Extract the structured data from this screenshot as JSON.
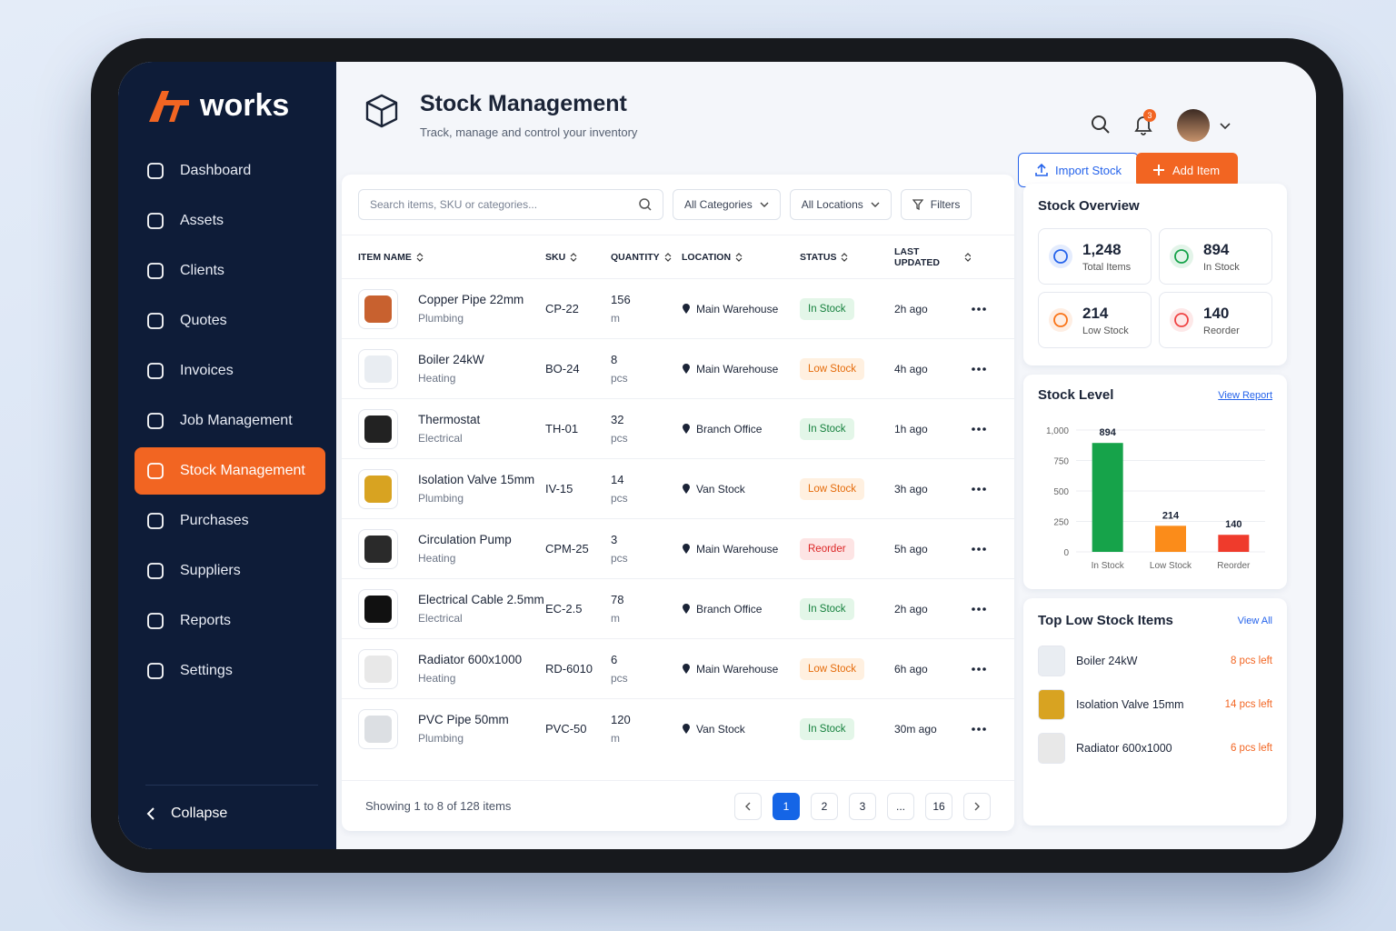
{
  "sidebar": {
    "brand": "works",
    "nav": [
      "Dashboard",
      "Assets",
      "Clients",
      "Quotes",
      "Invoices",
      "Job Management",
      "Stock Management",
      "Purchases",
      "Suppliers",
      "Reports",
      "Settings"
    ],
    "active": 6,
    "collapse": "Collapse"
  },
  "header": {
    "title": "Stock Management",
    "subtitle": "Track, manage and control your inventory",
    "notifications": "3",
    "import": "Import Stock",
    "add": "Add Item"
  },
  "toolbar": {
    "search": "Search items, SKU or categories...",
    "categories": "All Categories",
    "locations": "All Locations",
    "filters": "Filters"
  },
  "table": {
    "columns": [
      "ITEM NAME",
      "SKU",
      "QUANTITY",
      "LOCATION",
      "STATUS",
      "LAST UPDATED"
    ],
    "rows": [
      {
        "name": "Copper Pipe 22mm",
        "category": "Plumbing",
        "sku": "CP-22",
        "quantity": 156,
        "unit": "m",
        "location": "Main Warehouse",
        "status": "In Stock",
        "status_color": "green",
        "updated": "2h ago"
      },
      {
        "name": "Boiler 24kW",
        "category": "Heating",
        "sku": "BO-24",
        "quantity": 8,
        "unit": "pcs",
        "location": "Main Warehouse",
        "status": "Low Stock",
        "status_color": "orange",
        "updated": "4h ago"
      },
      {
        "name": "Thermostat",
        "category": "Electrical",
        "sku": "TH-01",
        "quantity": 32,
        "unit": "pcs",
        "location": "Branch Office",
        "status": "In Stock",
        "status_color": "green",
        "updated": "1h ago"
      },
      {
        "name": "Isolation Valve 15mm",
        "category": "Plumbing",
        "sku": "IV-15",
        "quantity": 14,
        "unit": "pcs",
        "location": "Van Stock",
        "status": "Low Stock",
        "status_color": "orange",
        "updated": "3h ago"
      },
      {
        "name": "Circulation Pump",
        "category": "Heating",
        "sku": "CPM-25",
        "quantity": 3,
        "unit": "pcs",
        "location": "Main Warehouse",
        "status": "Reorder",
        "status_color": "red",
        "updated": "5h ago"
      },
      {
        "name": "Electrical Cable 2.5mm",
        "category": "Electrical",
        "sku": "EC-2.5",
        "quantity": 78,
        "unit": "m",
        "location": "Branch Office",
        "status": "In Stock",
        "status_color": "green",
        "updated": "2h ago"
      },
      {
        "name": "Radiator 600x1000",
        "category": "Heating",
        "sku": "RD-6010",
        "quantity": 6,
        "unit": "pcs",
        "location": "Main Warehouse",
        "status": "Low Stock",
        "status_color": "orange",
        "updated": "6h ago"
      },
      {
        "name": "PVC Pipe 50mm",
        "category": "Plumbing",
        "sku": "PVC-50",
        "quantity": 120,
        "unit": "m",
        "location": "Van Stock",
        "status": "In Stock",
        "status_color": "green",
        "updated": "30m ago"
      }
    ]
  },
  "pagination": {
    "summary": "Showing 1 to 8 of 128 items",
    "pages": [
      "1",
      "2",
      "3",
      "...",
      "16"
    ],
    "current": 0
  },
  "overview": {
    "title": "Stock Overview",
    "cards": [
      {
        "value": "1,248",
        "label": "Total Items",
        "color": "#2563eb"
      },
      {
        "value": "894",
        "label": "In Stock",
        "color": "#16a34a"
      },
      {
        "value": "214",
        "label": "Low Stock",
        "color": "#f97316"
      },
      {
        "value": "140",
        "label": "Reorder",
        "color": "#ef4444"
      }
    ]
  },
  "stock_level": {
    "type": "bar",
    "title": "Stock Level",
    "link": "View Report",
    "categories": [
      "In Stock",
      "Low Stock",
      "Reorder"
    ],
    "values": [
      894,
      214,
      140
    ],
    "colors": [
      "#16a34a",
      "#fb8c1a",
      "#ef3b2c"
    ],
    "ylim": [
      0,
      1000
    ],
    "yticks": [
      0,
      250,
      500,
      750,
      {
        "value": 1000,
        "label": "1,000"
      }
    ],
    "grid": true
  },
  "low_stock": {
    "title": "Top Low Stock Items",
    "link": "View All",
    "items": [
      {
        "name": "Boiler 24kW",
        "left": "8 pcs left"
      },
      {
        "name": "Isolation Valve 15mm",
        "left": "14 pcs left"
      },
      {
        "name": "Radiator 600x1000",
        "left": "6 pcs left"
      }
    ]
  }
}
